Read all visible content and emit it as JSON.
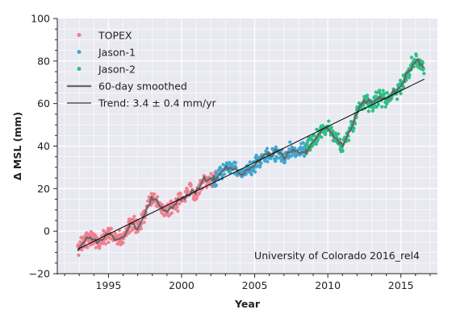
{
  "chart_data": {
    "type": "scatter",
    "xlabel": "Year",
    "ylabel": "Δ MSL (mm)",
    "xlim": [
      1991.5,
      2017.5
    ],
    "ylim": [
      -20,
      100
    ],
    "x_ticks": [
      1995,
      2000,
      2005,
      2010,
      2015
    ],
    "y_ticks": [
      -20,
      0,
      20,
      40,
      60,
      80,
      100
    ],
    "grid": true,
    "legend_position": "top-left",
    "credit": "University of Colorado 2016_rel4",
    "series": [
      {
        "name": "TOPEX",
        "kind": "scatter",
        "color": "#ef7f8f",
        "x_range": [
          1992.9,
          2002.4
        ],
        "anchors": [
          [
            1992.9,
            -9
          ],
          [
            1993.5,
            -3
          ],
          [
            1994,
            -4
          ],
          [
            1994.5,
            -5
          ],
          [
            1995,
            0
          ],
          [
            1995.5,
            -4
          ],
          [
            1996,
            -3
          ],
          [
            1996.5,
            3
          ],
          [
            1997,
            2
          ],
          [
            1997.5,
            8
          ],
          [
            1998,
            16
          ],
          [
            1998.5,
            12
          ],
          [
            1999,
            9
          ],
          [
            1999.5,
            13
          ],
          [
            2000,
            15
          ],
          [
            2000.5,
            18
          ],
          [
            2001,
            19
          ],
          [
            2001.5,
            24
          ],
          [
            2002,
            24
          ],
          [
            2002.4,
            25
          ]
        ]
      },
      {
        "name": "Jason-1",
        "kind": "scatter",
        "color": "#3fa8cf",
        "x_range": [
          2002.1,
          2008.6
        ],
        "anchors": [
          [
            2002.1,
            24
          ],
          [
            2002.5,
            26
          ],
          [
            2003,
            30
          ],
          [
            2003.5,
            30
          ],
          [
            2004,
            27
          ],
          [
            2004.5,
            29
          ],
          [
            2005,
            31
          ],
          [
            2005.5,
            35
          ],
          [
            2006,
            36
          ],
          [
            2006.5,
            37
          ],
          [
            2007,
            35
          ],
          [
            2007.5,
            38
          ],
          [
            2008,
            37
          ],
          [
            2008.6,
            38
          ]
        ]
      },
      {
        "name": "Jason-2",
        "kind": "scatter",
        "color": "#2dbf86",
        "x_range": [
          2008.5,
          2016.6
        ],
        "anchors": [
          [
            2008.5,
            38
          ],
          [
            2009,
            42
          ],
          [
            2009.5,
            47
          ],
          [
            2010,
            49
          ],
          [
            2010.5,
            44
          ],
          [
            2011,
            40
          ],
          [
            2011.5,
            47
          ],
          [
            2012,
            56
          ],
          [
            2012.5,
            62
          ],
          [
            2013,
            60
          ],
          [
            2013.5,
            63
          ],
          [
            2014,
            62
          ],
          [
            2014.5,
            65
          ],
          [
            2015,
            68
          ],
          [
            2015.5,
            75
          ],
          [
            2016,
            80
          ],
          [
            2016.6,
            77
          ]
        ]
      },
      {
        "name": "60-day smoothed",
        "kind": "line",
        "color": "#666666"
      },
      {
        "name": "Trend: 3.4 ± 0.4 mm/yr",
        "kind": "trend",
        "color": "#000000",
        "points": [
          [
            1992.9,
            -8.5
          ],
          [
            2016.6,
            71.5
          ]
        ]
      }
    ]
  }
}
